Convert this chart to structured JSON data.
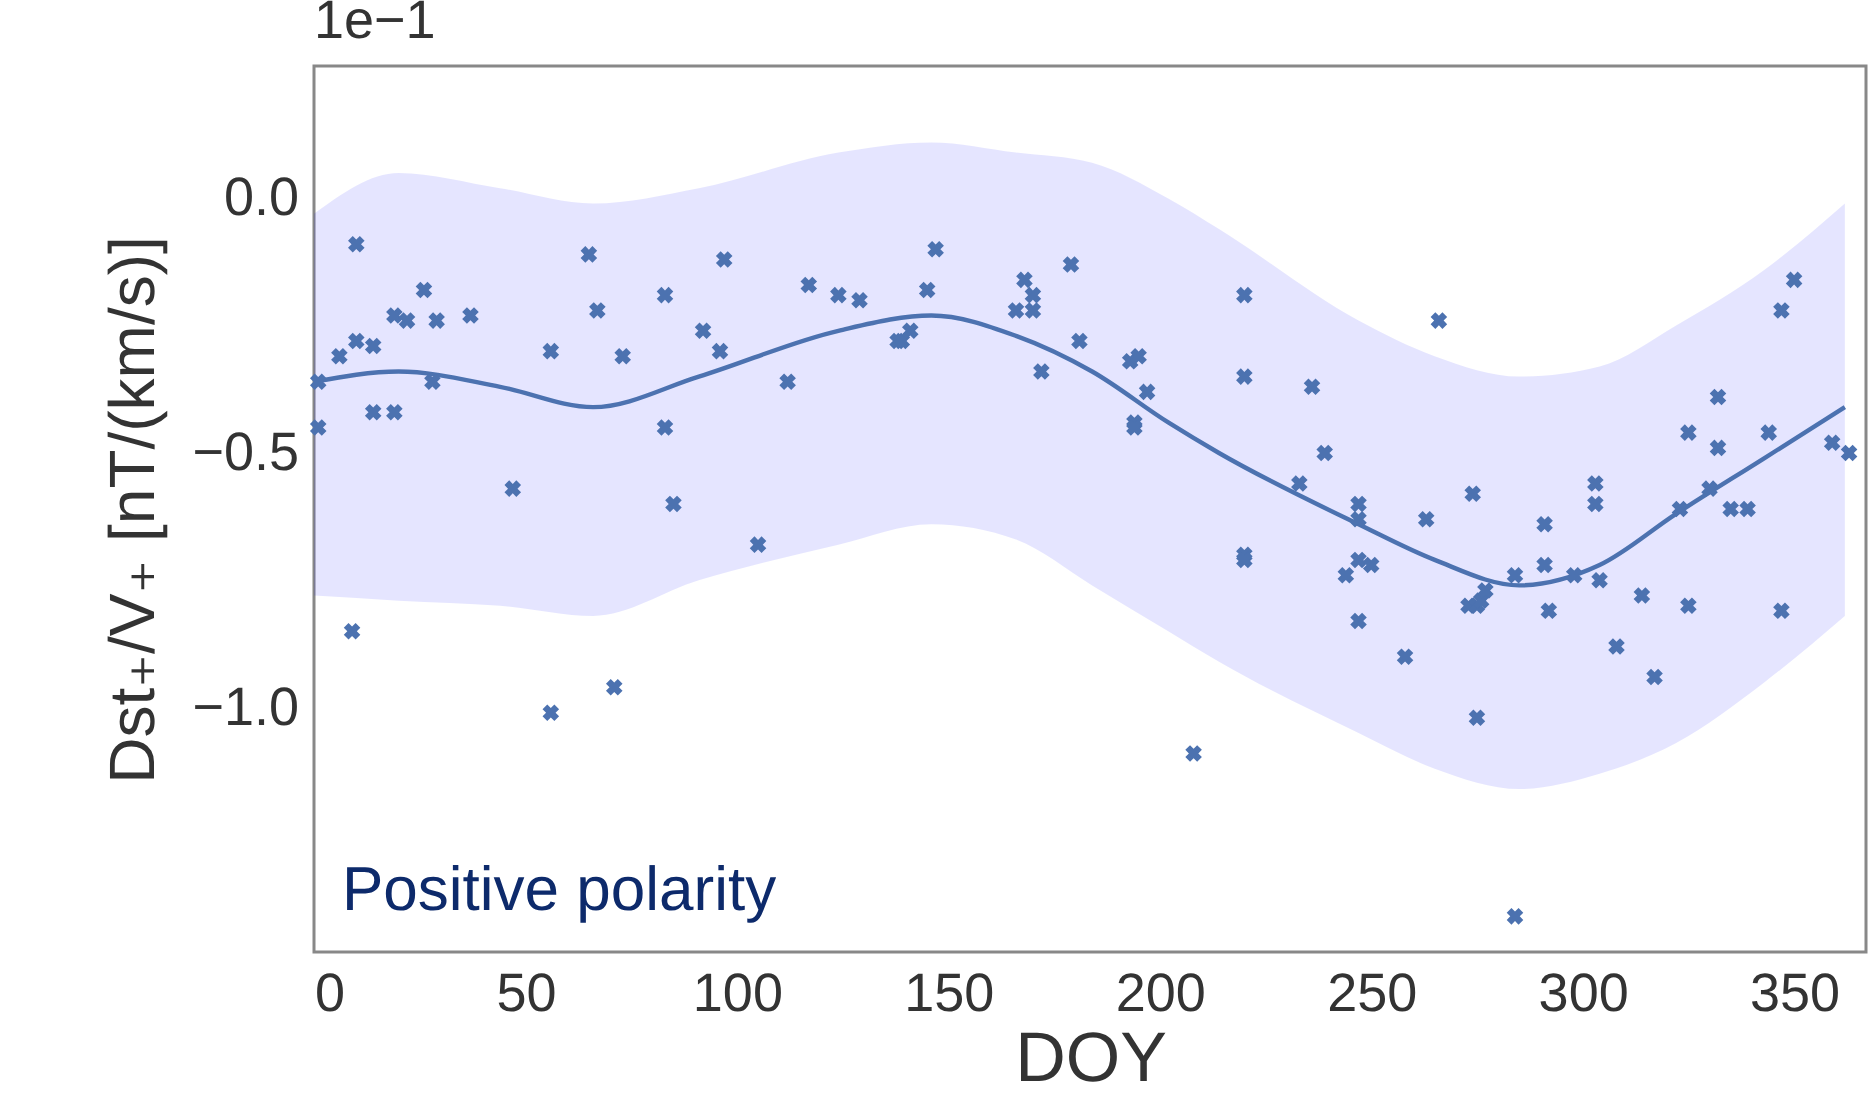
{
  "chart_data": {
    "type": "scatter",
    "xlabel": "DOY",
    "ylabel": "Dst₊/V₊ [nT/(km/s)]",
    "annotations": [
      "1e−1",
      "Positive polarity"
    ],
    "xlim": [
      0,
      367
    ],
    "xticks": [
      0,
      50,
      100,
      150,
      200,
      250,
      300,
      350
    ],
    "ylim": [
      -1.48,
      0.26
    ],
    "yticks": [
      {
        "value": 0,
        "label": "0.0"
      },
      {
        "value": -0.5,
        "label": "−0.5"
      },
      {
        "value": -1.0,
        "label": "−1.0"
      }
    ],
    "grid": false,
    "series": [
      {
        "marker": "cross",
        "color": "#4c72b0",
        "x": [
          1,
          1,
          10,
          6,
          10,
          14,
          14,
          19,
          19,
          22,
          26,
          28,
          29,
          37,
          9,
          47,
          56,
          56,
          65,
          67,
          73,
          71,
          83,
          83,
          85,
          92,
          96,
          97,
          105,
          112,
          117,
          124,
          129,
          138,
          139,
          141,
          145,
          147,
          166,
          168,
          170,
          170,
          179,
          181,
          172,
          193,
          195,
          197,
          194,
          194,
          208,
          220,
          220,
          220,
          220,
          236,
          239,
          233,
          247,
          247,
          247,
          244,
          247,
          250,
          258,
          263,
          266,
          274,
          273,
          275,
          276,
          277,
          275,
          284,
          284,
          291,
          291,
          292,
          298,
          303,
          303,
          304,
          308,
          314,
          317,
          323,
          325,
          325,
          330,
          332,
          332,
          335,
          339,
          344,
          347,
          350,
          347,
          359,
          363
        ],
        "values": [
          -0.36,
          -0.45,
          -0.09,
          -0.31,
          -0.28,
          -0.29,
          -0.42,
          -0.42,
          -0.23,
          -0.24,
          -0.18,
          -0.36,
          -0.24,
          -0.23,
          -0.85,
          -0.57,
          -0.3,
          -1.01,
          -0.11,
          -0.22,
          -0.31,
          -0.96,
          -0.19,
          -0.45,
          -0.6,
          -0.26,
          -0.3,
          -0.12,
          -0.68,
          -0.36,
          -0.17,
          -0.19,
          -0.2,
          -0.28,
          -0.28,
          -0.26,
          -0.18,
          -0.1,
          -0.22,
          -0.16,
          -0.19,
          -0.22,
          -0.13,
          -0.28,
          -0.34,
          -0.32,
          -0.31,
          -0.38,
          -0.44,
          -0.45,
          -1.09,
          -0.19,
          -0.35,
          -0.7,
          -0.71,
          -0.37,
          -0.5,
          -0.56,
          -0.6,
          -0.63,
          -0.71,
          -0.74,
          -0.83,
          -0.72,
          -0.9,
          -0.63,
          -0.24,
          -0.58,
          -0.8,
          -0.8,
          -0.79,
          -0.77,
          -1.02,
          -0.74,
          -1.41,
          -0.64,
          -0.72,
          -0.81,
          -0.74,
          -0.56,
          -0.6,
          -0.75,
          -0.88,
          -0.78,
          -0.94,
          -0.61,
          -0.46,
          -0.8,
          -0.57,
          -0.39,
          -0.49,
          -0.61,
          -0.61,
          -0.46,
          -0.22,
          -0.16,
          -0.81,
          -0.48,
          -0.5
        ]
      },
      {
        "type": "line",
        "marker": "none",
        "color": "#4c72b0",
        "x": [
          0,
          20,
          44,
          66,
          91,
          124,
          146,
          166,
          184,
          202,
          214,
          247,
          265,
          285,
          304,
          322,
          343,
          362
        ],
        "values": [
          -0.36,
          -0.34,
          -0.37,
          -0.41,
          -0.35,
          -0.26,
          -0.23,
          -0.27,
          -0.34,
          -0.44,
          -0.5,
          -0.64,
          -0.71,
          -0.76,
          -0.72,
          -0.62,
          -0.51,
          -0.41
        ],
        "lower": [
          -0.78,
          -0.79,
          -0.8,
          -0.82,
          -0.75,
          -0.68,
          -0.64,
          -0.67,
          -0.76,
          -0.85,
          -0.91,
          -1.05,
          -1.12,
          -1.16,
          -1.13,
          -1.07,
          -0.95,
          -0.82
        ],
        "upper": [
          -0.03,
          0.05,
          0.02,
          -0.01,
          0.02,
          0.09,
          0.11,
          0.09,
          0.07,
          0.0,
          -0.06,
          -0.24,
          -0.31,
          -0.35,
          -0.33,
          -0.25,
          -0.14,
          -0.01
        ]
      }
    ]
  }
}
